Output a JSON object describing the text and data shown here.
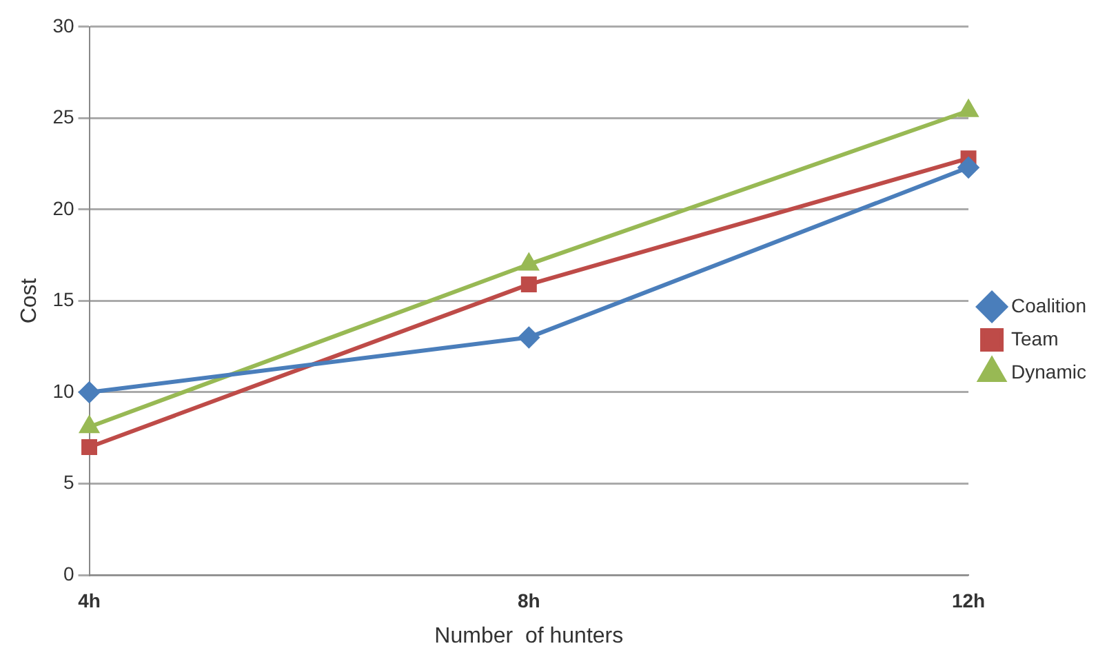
{
  "chart_data": {
    "type": "line",
    "xlabel": "Number  of hunters",
    "ylabel": "Cost",
    "categories": [
      "4h",
      "8h",
      "12h"
    ],
    "ylim": [
      0,
      30
    ],
    "yticks": [
      0,
      5,
      10,
      15,
      20,
      25,
      30
    ],
    "grid": "y",
    "legend": "right",
    "series": [
      {
        "name": "Coalition",
        "color": "#4a7ebb",
        "marker": "diamond",
        "values": [
          10.0,
          13.0,
          22.3
        ]
      },
      {
        "name": "Team",
        "color": "#be4b48",
        "marker": "square",
        "values": [
          7.0,
          15.9,
          22.8
        ]
      },
      {
        "name": "Dynamic",
        "color": "#98b954",
        "marker": "triangle",
        "values": [
          8.1,
          17.0,
          25.4
        ]
      }
    ]
  }
}
